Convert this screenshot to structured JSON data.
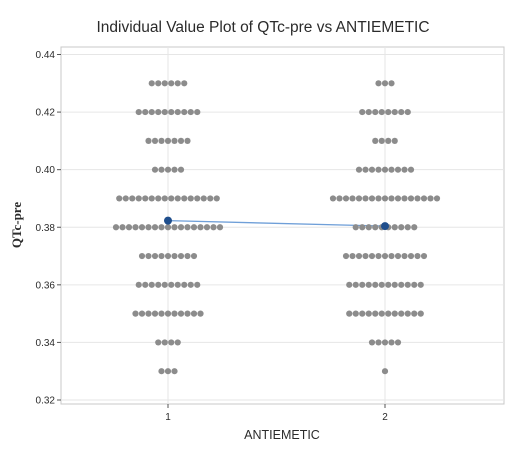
{
  "chart_data": {
    "type": "scatter",
    "subtype": "individual-value-plot",
    "title": "Individual Value Plot of QTc-pre vs ANTIEMETIC",
    "xlabel": "ANTIEMETIC",
    "ylabel": "QTc-pre",
    "categories": [
      "1",
      "2"
    ],
    "ylim": [
      0.32,
      0.44
    ],
    "yticks": [
      0.32,
      0.34,
      0.36,
      0.38,
      0.4,
      0.42,
      0.44
    ],
    "ytick_labels": [
      "0.32",
      "0.34",
      "0.36",
      "0.38",
      "0.40",
      "0.42",
      "0.44"
    ],
    "grid": true,
    "point_color": "#8c8c8c",
    "mean_color": "#1f4e8c",
    "mean_line_color": "#6f9fd8",
    "groups": [
      {
        "category": "1",
        "value_counts": [
          {
            "y": 0.43,
            "count": 6
          },
          {
            "y": 0.42,
            "count": 10
          },
          {
            "y": 0.41,
            "count": 7
          },
          {
            "y": 0.4,
            "count": 5
          },
          {
            "y": 0.39,
            "count": 16
          },
          {
            "y": 0.38,
            "count": 17
          },
          {
            "y": 0.37,
            "count": 9
          },
          {
            "y": 0.36,
            "count": 10
          },
          {
            "y": 0.35,
            "count": 11
          },
          {
            "y": 0.34,
            "count": 4
          },
          {
            "y": 0.33,
            "count": 3
          }
        ],
        "mean": 0.3823
      },
      {
        "category": "2",
        "value_counts": [
          {
            "y": 0.43,
            "count": 3
          },
          {
            "y": 0.42,
            "count": 8
          },
          {
            "y": 0.41,
            "count": 4
          },
          {
            "y": 0.4,
            "count": 9
          },
          {
            "y": 0.39,
            "count": 17
          },
          {
            "y": 0.38,
            "count": 10
          },
          {
            "y": 0.37,
            "count": 13
          },
          {
            "y": 0.36,
            "count": 12
          },
          {
            "y": 0.35,
            "count": 12
          },
          {
            "y": 0.34,
            "count": 5
          },
          {
            "y": 0.33,
            "count": 1
          }
        ],
        "mean": 0.3804
      }
    ]
  }
}
